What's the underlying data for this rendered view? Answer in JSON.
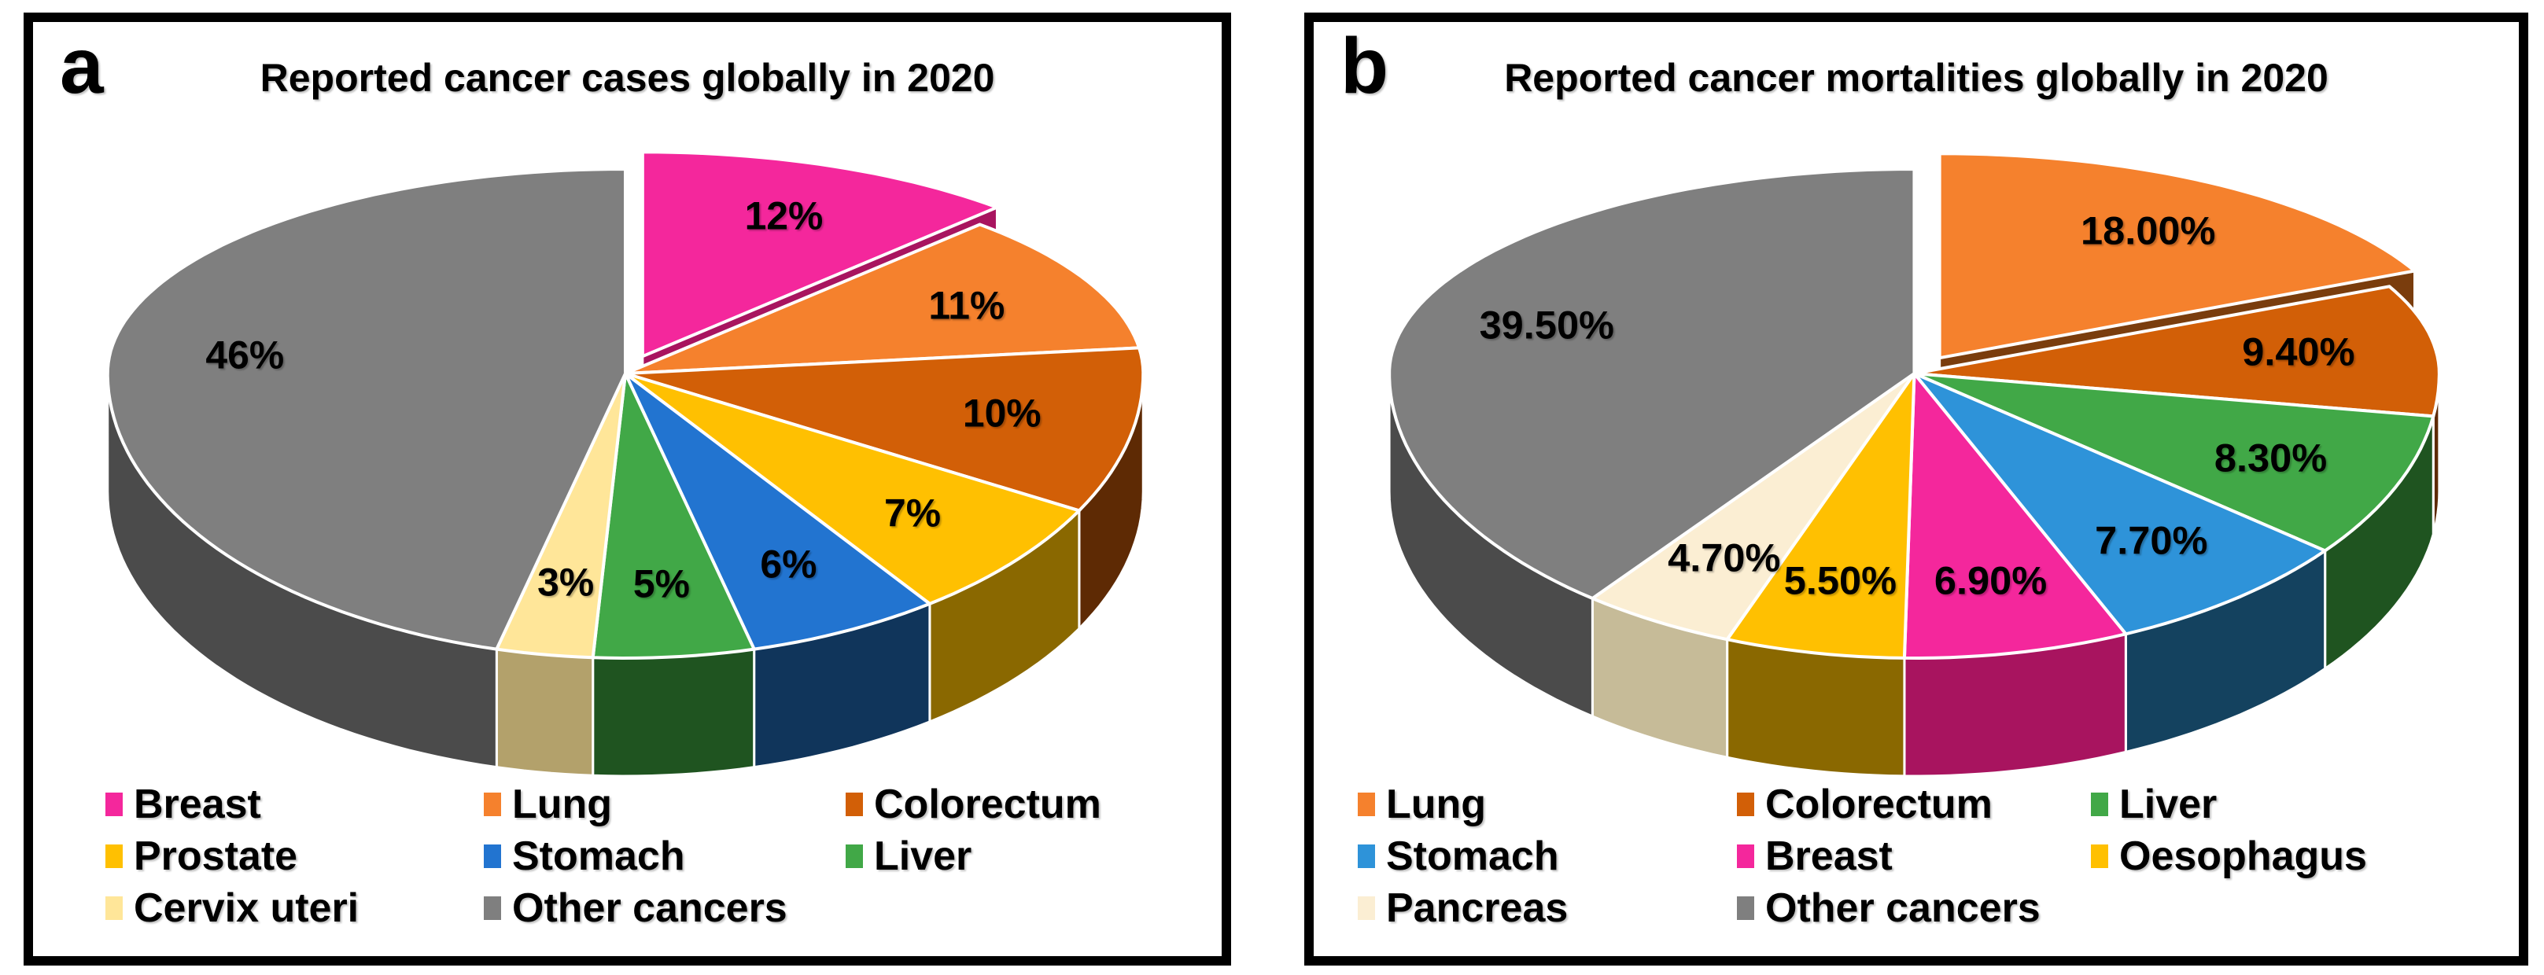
{
  "figure": {
    "background_color": "#FFFFFF",
    "border_color": "#000000",
    "slice_outline_color": "#FFFFFF"
  },
  "chart_data": [
    {
      "type": "pie",
      "style": "3d-exploded-first-slice",
      "panel": "a",
      "title": "Reported cancer cases globally in 2020",
      "unit": "percent",
      "legend_position": "bottom",
      "legend_columns": 3,
      "slices": [
        {
          "label": "Breast",
          "value": 12,
          "display": "12%",
          "color": "#F4279C",
          "side_color": "#A8145F",
          "exploded": true
        },
        {
          "label": "Lung",
          "value": 11,
          "display": "11%",
          "color": "#F5812D",
          "side_color": "#7A3D0D",
          "exploded": false
        },
        {
          "label": "Colorectum",
          "value": 10,
          "display": "10%",
          "color": "#D25F07",
          "side_color": "#5E2A04",
          "exploded": false
        },
        {
          "label": "Prostate",
          "value": 7,
          "display": "7%",
          "color": "#FFC001",
          "side_color": "#8A6800",
          "exploded": false
        },
        {
          "label": "Stomach",
          "value": 6,
          "display": "6%",
          "color": "#2274D0",
          "side_color": "#10355B",
          "exploded": false
        },
        {
          "label": "Liver",
          "value": 5,
          "display": "5%",
          "color": "#41A847",
          "side_color": "#1F5420",
          "exploded": false
        },
        {
          "label": "Cervix uteri",
          "value": 3,
          "display": "3%",
          "color": "#FFE699",
          "side_color": "#B3A16B",
          "exploded": false
        },
        {
          "label": "Other cancers",
          "value": 46,
          "display": "46%",
          "color": "#7F7F7F",
          "side_color": "#4B4B4B",
          "exploded": false
        }
      ]
    },
    {
      "type": "pie",
      "style": "3d-exploded-first-slice",
      "panel": "b",
      "title": "Reported cancer mortalities globally in 2020",
      "unit": "percent",
      "legend_position": "bottom",
      "legend_columns": 3,
      "slices": [
        {
          "label": "Lung",
          "value": 18,
          "display": "18.00%",
          "color": "#F5812D",
          "side_color": "#7A3D0D",
          "exploded": true
        },
        {
          "label": "Colorectum",
          "value": 9.4,
          "display": "9.40%",
          "color": "#D25F07",
          "side_color": "#5E2A04",
          "exploded": false
        },
        {
          "label": "Liver",
          "value": 8.3,
          "display": "8.30%",
          "color": "#41A847",
          "side_color": "#1F5420",
          "exploded": false
        },
        {
          "label": "Stomach",
          "value": 7.7,
          "display": "7.70%",
          "color": "#2E93D9",
          "side_color": "#14425F",
          "exploded": false
        },
        {
          "label": "Breast",
          "value": 6.9,
          "display": "6.90%",
          "color": "#F4279C",
          "side_color": "#A8145F",
          "exploded": false
        },
        {
          "label": "Oesophagus",
          "value": 5.5,
          "display": "5.50%",
          "color": "#FFC001",
          "side_color": "#8A6800",
          "exploded": false
        },
        {
          "label": "Pancreas",
          "value": 4.7,
          "display": "4.70%",
          "color": "#FBEED3",
          "side_color": "#C6BB98",
          "exploded": false
        },
        {
          "label": "Other cancers",
          "value": 39.5,
          "display": "39.50%",
          "color": "#7F7F7F",
          "side_color": "#4B4B4B",
          "exploded": false
        }
      ]
    }
  ]
}
